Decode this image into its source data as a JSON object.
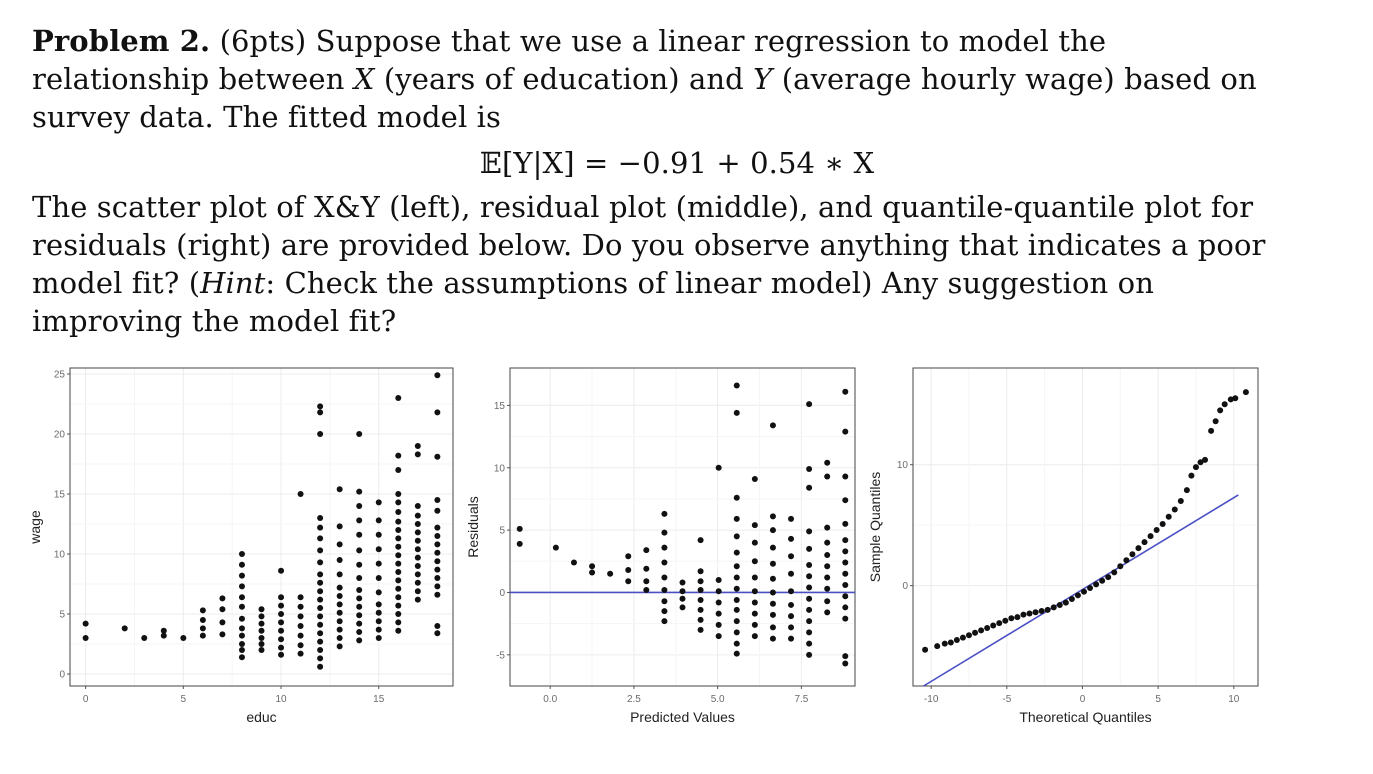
{
  "problem": {
    "heading": "Problem 2.",
    "points": "(6pts)",
    "intro1": " Suppose that we use a linear regression to model the relationship between ",
    "var_x": "X",
    "intro2": " (years of education) and ",
    "var_y": "Y",
    "intro3": " (average hourly wage) based on survey data. The fitted model is",
    "equation": "𝔼[Y|X] = −0.91 + 0.54 ∗ X",
    "para2a": "The scatter plot of X&Y (left), residual plot (middle), and quantile-quantile plot for residuals (right) are provided below. Do you observe anything that indicates a poor model fit? (",
    "hint": "Hint",
    "para2b": ": Check the assumptions of linear model) Any suggestion on improving the model fit?"
  },
  "colors": {
    "points": "#111111",
    "line": "#4a4fc4",
    "grid": "#ececec",
    "frame": "#444444",
    "tick_text": "#6b6b6b"
  },
  "chart_data": [
    {
      "type": "scatter",
      "xlabel": "educ",
      "ylabel": "wage",
      "xlim": [
        -0.8,
        18.8
      ],
      "ylim": [
        -1,
        25.5
      ],
      "xticks": [
        0,
        5,
        10,
        15
      ],
      "yticks": [
        0,
        5,
        10,
        15,
        20,
        25
      ],
      "grid": true,
      "points": [
        [
          0,
          4.2
        ],
        [
          0,
          3
        ],
        [
          2,
          3.8
        ],
        [
          3,
          3
        ],
        [
          4,
          3.2
        ],
        [
          4,
          3.6
        ],
        [
          5,
          3
        ],
        [
          6,
          3.2
        ],
        [
          6,
          3.8
        ],
        [
          6,
          4.5
        ],
        [
          6,
          5.3
        ],
        [
          7,
          3.3
        ],
        [
          7,
          4.3
        ],
        [
          7,
          5.4
        ],
        [
          7,
          6.3
        ],
        [
          8,
          1.4
        ],
        [
          8,
          2
        ],
        [
          8,
          2.5
        ],
        [
          8,
          3.2
        ],
        [
          8,
          3.8
        ],
        [
          8,
          4.6
        ],
        [
          8,
          5.6
        ],
        [
          8,
          6.4
        ],
        [
          8,
          7.3
        ],
        [
          8,
          8.2
        ],
        [
          8,
          9.1
        ],
        [
          8,
          10
        ],
        [
          9,
          2
        ],
        [
          9,
          2.5
        ],
        [
          9,
          3
        ],
        [
          9,
          3.6
        ],
        [
          9,
          4.2
        ],
        [
          9,
          4.8
        ],
        [
          9,
          5.4
        ],
        [
          10,
          1.6
        ],
        [
          10,
          2.2
        ],
        [
          10,
          2.9
        ],
        [
          10,
          3.6
        ],
        [
          10,
          4.3
        ],
        [
          10,
          5
        ],
        [
          10,
          5.7
        ],
        [
          10,
          6.4
        ],
        [
          10,
          8.6
        ],
        [
          11,
          1.7
        ],
        [
          11,
          2.4
        ],
        [
          11,
          3.2
        ],
        [
          11,
          4
        ],
        [
          11,
          4.8
        ],
        [
          11,
          5.6
        ],
        [
          11,
          6.4
        ],
        [
          11,
          15
        ],
        [
          12,
          0.6
        ],
        [
          12,
          1.3
        ],
        [
          12,
          2
        ],
        [
          12,
          2.7
        ],
        [
          12,
          3.4
        ],
        [
          12,
          4.1
        ],
        [
          12,
          4.8
        ],
        [
          12,
          5.5
        ],
        [
          12,
          6.2
        ],
        [
          12,
          6.9
        ],
        [
          12,
          7.6
        ],
        [
          12,
          8.3
        ],
        [
          12,
          9.3
        ],
        [
          12,
          10.3
        ],
        [
          12,
          11.3
        ],
        [
          12,
          12.2
        ],
        [
          12,
          13
        ],
        [
          12,
          20
        ],
        [
          12,
          21.8
        ],
        [
          12,
          22.3
        ],
        [
          13,
          2.3
        ],
        [
          13,
          3
        ],
        [
          13,
          3.7
        ],
        [
          13,
          4.4
        ],
        [
          13,
          5.1
        ],
        [
          13,
          5.8
        ],
        [
          13,
          6.5
        ],
        [
          13,
          7.2
        ],
        [
          13,
          8.3
        ],
        [
          13,
          9.5
        ],
        [
          13,
          10.8
        ],
        [
          13,
          12.3
        ],
        [
          13,
          15.4
        ],
        [
          14,
          2.8
        ],
        [
          14,
          3.5
        ],
        [
          14,
          4.2
        ],
        [
          14,
          4.9
        ],
        [
          14,
          5.6
        ],
        [
          14,
          6.3
        ],
        [
          14,
          7
        ],
        [
          14,
          8
        ],
        [
          14,
          9.1
        ],
        [
          14,
          10.3
        ],
        [
          14,
          11.6
        ],
        [
          14,
          12.8
        ],
        [
          14,
          14
        ],
        [
          14,
          15.2
        ],
        [
          14,
          20
        ],
        [
          15,
          3
        ],
        [
          15,
          3.7
        ],
        [
          15,
          4.4
        ],
        [
          15,
          5.1
        ],
        [
          15,
          5.8
        ],
        [
          15,
          6.8
        ],
        [
          15,
          8
        ],
        [
          15,
          9.2
        ],
        [
          15,
          10.4
        ],
        [
          15,
          11.6
        ],
        [
          15,
          12.8
        ],
        [
          15,
          14.3
        ],
        [
          16,
          3.6
        ],
        [
          16,
          4.3
        ],
        [
          16,
          5
        ],
        [
          16,
          5.7
        ],
        [
          16,
          6.4
        ],
        [
          16,
          7.1
        ],
        [
          16,
          7.8
        ],
        [
          16,
          8.5
        ],
        [
          16,
          9.2
        ],
        [
          16,
          9.9
        ],
        [
          16,
          10.6
        ],
        [
          16,
          11.3
        ],
        [
          16,
          12
        ],
        [
          16,
          12.7
        ],
        [
          16,
          13.5
        ],
        [
          16,
          14.3
        ],
        [
          16,
          15
        ],
        [
          16,
          17
        ],
        [
          16,
          18.2
        ],
        [
          16,
          23
        ],
        [
          17,
          6.2
        ],
        [
          17,
          6.9
        ],
        [
          17,
          7.6
        ],
        [
          17,
          8.3
        ],
        [
          17,
          9
        ],
        [
          17,
          9.7
        ],
        [
          17,
          10.4
        ],
        [
          17,
          11.1
        ],
        [
          17,
          11.8
        ],
        [
          17,
          12.5
        ],
        [
          17,
          13.2
        ],
        [
          17,
          14
        ],
        [
          17,
          18.3
        ],
        [
          17,
          19
        ],
        [
          18,
          3.4
        ],
        [
          18,
          4
        ],
        [
          18,
          6.6
        ],
        [
          18,
          7.3
        ],
        [
          18,
          8
        ],
        [
          18,
          8.7
        ],
        [
          18,
          9.4
        ],
        [
          18,
          10.1
        ],
        [
          18,
          10.8
        ],
        [
          18,
          11.5
        ],
        [
          18,
          12.2
        ],
        [
          18,
          13.6
        ],
        [
          18,
          14.5
        ],
        [
          18,
          18.1
        ],
        [
          18,
          21.8
        ],
        [
          18,
          24.9
        ]
      ]
    },
    {
      "type": "scatter",
      "xlabel": "Predicted Values",
      "ylabel": "Residuals",
      "xlim": [
        -1.2,
        9.1
      ],
      "ylim": [
        -7.5,
        18
      ],
      "xticks": [
        0.0,
        2.5,
        5.0,
        7.5
      ],
      "ytick_values": [
        -5,
        0,
        5,
        10,
        15
      ],
      "ytick_labels": [
        "-5",
        "0",
        "5",
        "10",
        "15"
      ],
      "xtick_labels": [
        "0.0",
        "2.5",
        "5.0",
        "7.5"
      ],
      "grid": true,
      "reference_line_y": 0,
      "points": [
        [
          -0.91,
          5.1
        ],
        [
          -0.91,
          3.9
        ],
        [
          0.17,
          3.6
        ],
        [
          0.71,
          2.4
        ],
        [
          1.25,
          2.1
        ],
        [
          1.25,
          1.6
        ],
        [
          1.79,
          1.5
        ],
        [
          2.33,
          0.9
        ],
        [
          2.33,
          1.8
        ],
        [
          2.33,
          2.9
        ],
        [
          2.87,
          0.2
        ],
        [
          2.87,
          0.9
        ],
        [
          2.87,
          1.9
        ],
        [
          2.87,
          3.4
        ],
        [
          3.41,
          -2.3
        ],
        [
          3.41,
          -1.5
        ],
        [
          3.41,
          -0.7
        ],
        [
          3.41,
          0.2
        ],
        [
          3.41,
          1.2
        ],
        [
          3.41,
          2.4
        ],
        [
          3.41,
          3.6
        ],
        [
          3.41,
          4.8
        ],
        [
          3.41,
          6.3
        ],
        [
          3.95,
          -1.2
        ],
        [
          3.95,
          -0.5
        ],
        [
          3.95,
          0.1
        ],
        [
          3.95,
          0.8
        ],
        [
          4.49,
          -3
        ],
        [
          4.49,
          -2.2
        ],
        [
          4.49,
          -1.4
        ],
        [
          4.49,
          -0.6
        ],
        [
          4.49,
          0.2
        ],
        [
          4.49,
          0.9
        ],
        [
          4.49,
          1.7
        ],
        [
          4.49,
          4.2
        ],
        [
          5.03,
          -3.5
        ],
        [
          5.03,
          -2.6
        ],
        [
          5.03,
          -1.7
        ],
        [
          5.03,
          -0.8
        ],
        [
          5.03,
          0.1
        ],
        [
          5.03,
          1
        ],
        [
          5.03,
          10
        ],
        [
          5.57,
          -4.9
        ],
        [
          5.57,
          -4.1
        ],
        [
          5.57,
          -3.2
        ],
        [
          5.57,
          -2.3
        ],
        [
          5.57,
          -1.4
        ],
        [
          5.57,
          -0.6
        ],
        [
          5.57,
          0.3
        ],
        [
          5.57,
          1.2
        ],
        [
          5.57,
          2.1
        ],
        [
          5.57,
          3.2
        ],
        [
          5.57,
          4.5
        ],
        [
          5.57,
          5.9
        ],
        [
          5.57,
          7.6
        ],
        [
          5.57,
          14.4
        ],
        [
          5.57,
          16.6
        ],
        [
          6.11,
          -3.5
        ],
        [
          6.11,
          -2.6
        ],
        [
          6.11,
          -1.7
        ],
        [
          6.11,
          -0.8
        ],
        [
          6.11,
          0.1
        ],
        [
          6.11,
          1.2
        ],
        [
          6.11,
          2.5
        ],
        [
          6.11,
          4
        ],
        [
          6.11,
          5.4
        ],
        [
          6.11,
          9.1
        ],
        [
          6.65,
          -3.7
        ],
        [
          6.65,
          -2.8
        ],
        [
          6.65,
          -1.8
        ],
        [
          6.65,
          -0.9
        ],
        [
          6.65,
          0
        ],
        [
          6.65,
          1.1
        ],
        [
          6.65,
          2.3
        ],
        [
          6.65,
          3.6
        ],
        [
          6.65,
          5
        ],
        [
          6.65,
          6.1
        ],
        [
          6.65,
          13.4
        ],
        [
          7.19,
          -3.7
        ],
        [
          7.19,
          -2.8
        ],
        [
          7.19,
          -1.9
        ],
        [
          7.19,
          -1
        ],
        [
          7.19,
          0.1
        ],
        [
          7.19,
          1.5
        ],
        [
          7.19,
          2.9
        ],
        [
          7.19,
          4.3
        ],
        [
          7.19,
          5.9
        ],
        [
          7.73,
          -5
        ],
        [
          7.73,
          -4.1
        ],
        [
          7.73,
          -3.2
        ],
        [
          7.73,
          -2.3
        ],
        [
          7.73,
          -1.4
        ],
        [
          7.73,
          -0.5
        ],
        [
          7.73,
          0.4
        ],
        [
          7.73,
          1.3
        ],
        [
          7.73,
          2.2
        ],
        [
          7.73,
          3.5
        ],
        [
          7.73,
          4.9
        ],
        [
          7.73,
          8.4
        ],
        [
          7.73,
          9.9
        ],
        [
          7.73,
          15.1
        ],
        [
          8.27,
          -1.6
        ],
        [
          8.27,
          -0.7
        ],
        [
          8.27,
          0.3
        ],
        [
          8.27,
          1.2
        ],
        [
          8.27,
          2.1
        ],
        [
          8.27,
          3
        ],
        [
          8.27,
          4
        ],
        [
          8.27,
          5.2
        ],
        [
          8.27,
          9.3
        ],
        [
          8.27,
          10.4
        ],
        [
          8.81,
          -5.7
        ],
        [
          8.81,
          -5.1
        ],
        [
          8.81,
          -2.1
        ],
        [
          8.81,
          -1.2
        ],
        [
          8.81,
          -0.3
        ],
        [
          8.81,
          0.6
        ],
        [
          8.81,
          1.5
        ],
        [
          8.81,
          2.4
        ],
        [
          8.81,
          3.3
        ],
        [
          8.81,
          4.2
        ],
        [
          8.81,
          5.5
        ],
        [
          8.81,
          7.4
        ],
        [
          8.81,
          9.3
        ],
        [
          8.81,
          12.9
        ],
        [
          8.81,
          16.1
        ]
      ]
    },
    {
      "type": "scatter",
      "xlabel": "Theoretical Quantiles",
      "ylabel": "Sample Quantiles",
      "xlim": [
        -11.2,
        11.6
      ],
      "ylim": [
        -8.3,
        18
      ],
      "xticks": [
        -10,
        -5,
        0,
        5,
        10
      ],
      "xtick_labels": [
        "-10",
        "-5",
        "0",
        "5",
        "10"
      ],
      "ytick_values": [
        0,
        10
      ],
      "ytick_labels": [
        "0",
        "10"
      ],
      "grid": true,
      "reference_line": [
        [
          -10.5,
          -8.3
        ],
        [
          10.3,
          7.5
        ]
      ],
      "points": [
        [
          -10.4,
          -5.3
        ],
        [
          -9.6,
          -5
        ],
        [
          -9.1,
          -4.8
        ],
        [
          -8.7,
          -4.7
        ],
        [
          -8.3,
          -4.5
        ],
        [
          -7.9,
          -4.3
        ],
        [
          -7.5,
          -4.1
        ],
        [
          -7.1,
          -3.9
        ],
        [
          -6.7,
          -3.7
        ],
        [
          -6.3,
          -3.5
        ],
        [
          -5.9,
          -3.3
        ],
        [
          -5.5,
          -3.1
        ],
        [
          -5.1,
          -2.9
        ],
        [
          -4.7,
          -2.7
        ],
        [
          -4.3,
          -2.6
        ],
        [
          -3.9,
          -2.4
        ],
        [
          -3.5,
          -2.3
        ],
        [
          -3.1,
          -2.2
        ],
        [
          -2.7,
          -2.1
        ],
        [
          -2.3,
          -2
        ],
        [
          -1.9,
          -1.8
        ],
        [
          -1.5,
          -1.6
        ],
        [
          -1.1,
          -1.4
        ],
        [
          -0.7,
          -1.1
        ],
        [
          -0.3,
          -0.8
        ],
        [
          0.1,
          -0.5
        ],
        [
          0.5,
          -0.2
        ],
        [
          0.9,
          0.1
        ],
        [
          1.3,
          0.4
        ],
        [
          1.7,
          0.7
        ],
        [
          2.1,
          1.1
        ],
        [
          2.5,
          1.6
        ],
        [
          2.9,
          2.1
        ],
        [
          3.3,
          2.6
        ],
        [
          3.7,
          3.1
        ],
        [
          4.1,
          3.6
        ],
        [
          4.5,
          4.1
        ],
        [
          4.9,
          4.6
        ],
        [
          5.3,
          5.1
        ],
        [
          5.7,
          5.7
        ],
        [
          6.1,
          6.3
        ],
        [
          6.5,
          7
        ],
        [
          6.9,
          7.9
        ],
        [
          7.2,
          9.1
        ],
        [
          7.5,
          9.8
        ],
        [
          7.8,
          10.2
        ],
        [
          8.1,
          10.4
        ],
        [
          8.5,
          12.8
        ],
        [
          8.8,
          13.6
        ],
        [
          9.1,
          14.5
        ],
        [
          9.4,
          15
        ],
        [
          9.8,
          15.4
        ],
        [
          10.1,
          15.5
        ],
        [
          10.8,
          16
        ]
      ]
    }
  ]
}
